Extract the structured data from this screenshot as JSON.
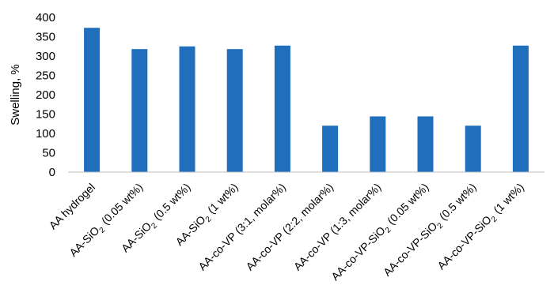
{
  "chart_data": {
    "type": "bar",
    "title": "",
    "xlabel": "",
    "ylabel": "Swelling, %",
    "ylim": [
      0,
      400
    ],
    "yticks": [
      0,
      50,
      100,
      150,
      200,
      250,
      300,
      350,
      400
    ],
    "grid": false,
    "legend": "none",
    "bar_color": "#1f6fbd",
    "categories": [
      "AA hydrogel",
      "AA-SiO2 (0.05 wt%)",
      "AA-SiO2 (0.5 wt%)",
      "AA-SiO2 (1 wt%)",
      "AA-co-VP (3:1, molar%)",
      "AA-co-VP (2:2, molar%)",
      "AA-co-VP (1:3, molar%)",
      "AA-co-VP-SiO2 (0.05 wt%)",
      "AA-co-VP-SiO2 (0.5 wt%)",
      "AA-co-VP-SiO2 (1 wt%)"
    ],
    "values": [
      373,
      318,
      325,
      318,
      327,
      120,
      144,
      144,
      120,
      327
    ]
  }
}
